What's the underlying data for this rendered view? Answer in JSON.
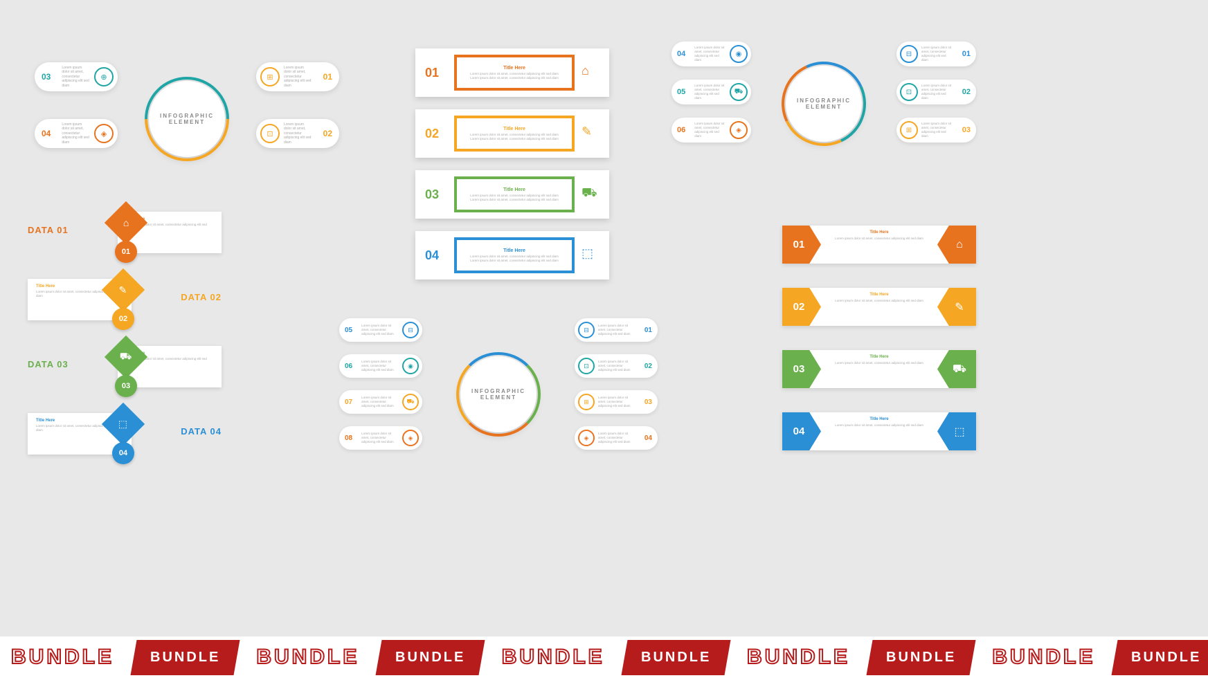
{
  "global": {
    "bg": "#e8e8e8",
    "banner_text": "BUNDLE",
    "banner_fill": "#b71c1c",
    "lorem_title": "Title Here",
    "lorem_body": "Lorem ipsum dolor sit amet, consectetur adipiscing elit sed diam"
  },
  "colors": {
    "orange": "#e8731e",
    "yellow": "#f5a623",
    "green": "#6ab04c",
    "blue": "#2a8fd4",
    "teal": "#1fa5a5"
  },
  "panel1": {
    "type": "hub-4",
    "hub_line1": "INFOGRAPHIC",
    "hub_line2": "ELEMENT",
    "items": [
      {
        "num": "01",
        "color": "#f5a623",
        "pos": "tr",
        "icon": "⊞"
      },
      {
        "num": "02",
        "color": "#f5a623",
        "pos": "br",
        "icon": "⊡"
      },
      {
        "num": "03",
        "color": "#1fa5a5",
        "pos": "tl",
        "icon": "⊕"
      },
      {
        "num": "04",
        "color": "#e8731e",
        "pos": "bl",
        "icon": "◈"
      }
    ]
  },
  "panel2": {
    "type": "stacked-box",
    "items": [
      {
        "num": "01",
        "color": "#e8731e",
        "icon": "⌂"
      },
      {
        "num": "02",
        "color": "#f5a623",
        "icon": "✎"
      },
      {
        "num": "03",
        "color": "#6ab04c",
        "icon": "⛟"
      },
      {
        "num": "04",
        "color": "#2a8fd4",
        "icon": "⬚"
      }
    ]
  },
  "panel3": {
    "type": "hub-6",
    "hub_line1": "INFOGRAPHIC",
    "hub_line2": "ELEMENT",
    "items": [
      {
        "num": "01",
        "color": "#2a8fd4",
        "pos": "tr",
        "icon": "⊟"
      },
      {
        "num": "02",
        "color": "#1fa5a5",
        "pos": "mr",
        "icon": "⊡"
      },
      {
        "num": "03",
        "color": "#f5a623",
        "pos": "br",
        "icon": "⊞"
      },
      {
        "num": "04",
        "color": "#2a8fd4",
        "pos": "tl",
        "icon": "◉"
      },
      {
        "num": "05",
        "color": "#1fa5a5",
        "pos": "ml",
        "icon": "⛟"
      },
      {
        "num": "06",
        "color": "#e8731e",
        "pos": "bl",
        "icon": "◈"
      }
    ]
  },
  "panel4": {
    "type": "diamond-list",
    "items": [
      {
        "num": "01",
        "data": "DATA 01",
        "color": "#e8731e",
        "side": "r",
        "icon": "⌂"
      },
      {
        "num": "02",
        "data": "DATA 02",
        "color": "#f5a623",
        "side": "l",
        "icon": "✎"
      },
      {
        "num": "03",
        "data": "DATA 03",
        "color": "#6ab04c",
        "side": "r",
        "icon": "⛟"
      },
      {
        "num": "04",
        "data": "DATA 04",
        "color": "#2a8fd4",
        "side": "l",
        "icon": "⬚"
      }
    ]
  },
  "panel5": {
    "type": "hub-8",
    "hub_line1": "INFOGRAPHIC",
    "hub_line2": "ELEMENT",
    "items": [
      {
        "num": "01",
        "color": "#2a8fd4",
        "pos": "r1",
        "icon": "⊟"
      },
      {
        "num": "02",
        "color": "#1fa5a5",
        "pos": "r2",
        "icon": "⊡"
      },
      {
        "num": "03",
        "color": "#f5a623",
        "pos": "r3",
        "icon": "⊞"
      },
      {
        "num": "04",
        "color": "#e8731e",
        "pos": "r4",
        "icon": "◈"
      },
      {
        "num": "05",
        "color": "#2a8fd4",
        "pos": "l1",
        "icon": "⊟"
      },
      {
        "num": "06",
        "color": "#1fa5a5",
        "pos": "l2",
        "icon": "◉"
      },
      {
        "num": "07",
        "color": "#f5a623",
        "pos": "l3",
        "icon": "⛟"
      },
      {
        "num": "08",
        "color": "#e8731e",
        "pos": "l4",
        "icon": "◈"
      }
    ]
  },
  "panel6": {
    "type": "arrow-list",
    "items": [
      {
        "num": "01",
        "color": "#e8731e",
        "icon": "⌂"
      },
      {
        "num": "02",
        "color": "#f5a623",
        "icon": "✎"
      },
      {
        "num": "03",
        "color": "#6ab04c",
        "icon": "⛟"
      },
      {
        "num": "04",
        "color": "#2a8fd4",
        "icon": "⬚"
      }
    ]
  }
}
